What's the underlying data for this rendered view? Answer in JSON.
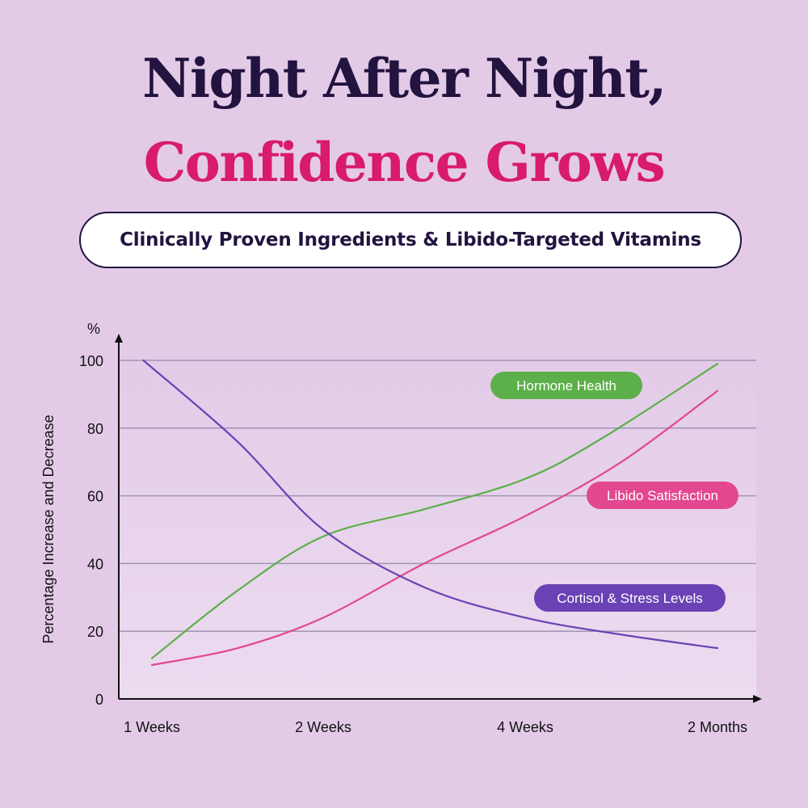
{
  "header": {
    "line1": "Night After Night,",
    "line2": "Confidence Grows",
    "subtitle": "Clinically Proven Ingredients & Libido-Targeted Vitamins"
  },
  "colors": {
    "background": "#e3cbe8",
    "title_dark": "#22133f",
    "title_pink": "#d81b6a",
    "hormone": "#5daf4a",
    "libido": "#e2478f",
    "cortisol": "#6b42b5"
  },
  "chart_data": {
    "type": "line",
    "ylabel": "Percentage Increase and Decrease",
    "yunit": "%",
    "ylim": [
      0,
      100
    ],
    "yticks": [
      "0",
      "20",
      "40",
      "60",
      "80",
      "100"
    ],
    "grid": true,
    "categories": [
      "1 Weeks",
      "2 Weeks",
      "4 Weeks",
      "2 Months"
    ],
    "series": [
      {
        "name": "Hormone Health",
        "color": "#5daf4a",
        "points": [
          [
            0,
            12
          ],
          [
            0.5,
            32
          ],
          [
            1,
            48
          ],
          [
            1.5,
            56
          ],
          [
            2,
            65
          ],
          [
            2.4,
            77
          ],
          [
            3,
            99
          ]
        ]
      },
      {
        "name": "Libido Satisfaction",
        "color": "#e2478f",
        "points": [
          [
            0,
            10
          ],
          [
            0.5,
            15
          ],
          [
            1,
            24
          ],
          [
            1.5,
            40
          ],
          [
            2,
            54
          ],
          [
            2.5,
            70
          ],
          [
            3,
            91
          ]
        ]
      },
      {
        "name": "Cortisol & Stress Levels",
        "color": "#6b42b5",
        "points": [
          [
            -0.05,
            100
          ],
          [
            0.5,
            76
          ],
          [
            1,
            50
          ],
          [
            1.5,
            33
          ],
          [
            2,
            24
          ],
          [
            2.5,
            19
          ],
          [
            3,
            15
          ]
        ]
      }
    ]
  }
}
